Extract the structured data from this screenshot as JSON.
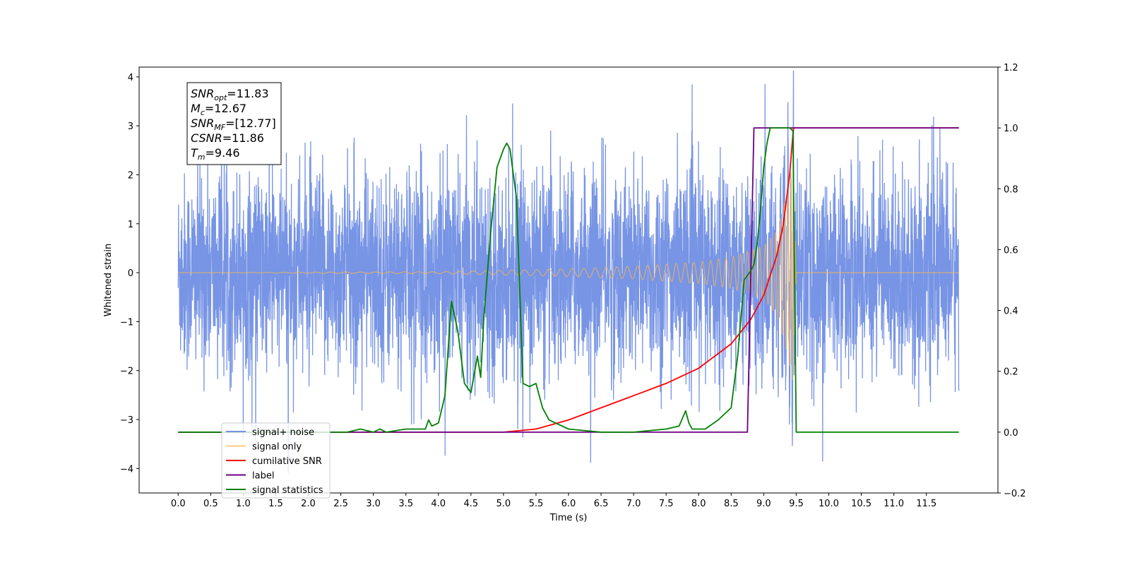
{
  "chart_data": {
    "type": "line",
    "xlabel": "Time (s)",
    "ylabel_left": "Whitened strain",
    "ylabel_right": "",
    "xlim": [
      -0.6,
      12.6
    ],
    "ylim_left": [
      -4.5,
      4.2
    ],
    "ylim_right": [
      -0.2,
      1.2
    ],
    "x_ticks": [
      "0.0",
      "0.5",
      "1.0",
      "1.5",
      "2.0",
      "2.5",
      "3.0",
      "3.5",
      "4.0",
      "4.5",
      "5.0",
      "5.5",
      "6.0",
      "6.5",
      "7.0",
      "7.5",
      "8.0",
      "8.5",
      "9.0",
      "9.5",
      "10.0",
      "10.5",
      "11.0",
      "11.5"
    ],
    "y_ticks_left": [
      "4",
      "3",
      "2",
      "1",
      "0",
      "−1",
      "−2",
      "−3",
      "−4"
    ],
    "y_ticks_right": [
      "1.2",
      "1.0",
      "0.8",
      "0.6",
      "0.4",
      "0.2",
      "0.0",
      "−0.2"
    ],
    "grid": false,
    "legend_position": "lower-left",
    "annotation_box": {
      "lines": [
        {
          "base": "SNR",
          "sub": "opt",
          "rest": "=11.83"
        },
        {
          "base": "M",
          "sub": "c",
          "rest": "=12.67"
        },
        {
          "base": "SNR",
          "sub": "MF",
          "rest": "=[12.77]"
        },
        {
          "base": "CSNR",
          "sub": "",
          "rest": "=11.86"
        },
        {
          "base": "T",
          "sub": "m",
          "rest": "=9.46"
        }
      ]
    },
    "series": [
      {
        "name": "signal+ noise",
        "color": "#6b8be3",
        "axis": "left",
        "description_values": {
          "x_range": [
            0.0,
            12.0
          ],
          "typical_amplitude": 1.5,
          "min": -4.1,
          "max": 3.8
        }
      },
      {
        "name": "signal only",
        "color": "#ffb74d",
        "axis": "left",
        "envelope": {
          "x": [
            0.0,
            4.0,
            5.0,
            6.0,
            7.0,
            8.0,
            8.5,
            9.0,
            9.2,
            9.35,
            9.45,
            9.5,
            12.0
          ],
          "amp": [
            0.0,
            0.02,
            0.05,
            0.08,
            0.13,
            0.22,
            0.32,
            0.55,
            0.85,
            1.6,
            2.3,
            0.0,
            0.0
          ]
        }
      },
      {
        "name": "cumilative SNR",
        "color": "#ff0000",
        "axis": "right",
        "x": [
          0.0,
          5.0,
          5.5,
          6.0,
          6.5,
          7.0,
          7.5,
          8.0,
          8.5,
          8.8,
          9.0,
          9.2,
          9.3,
          9.4,
          9.45,
          9.46,
          12.0
        ],
        "y": [
          0.0,
          0.0,
          0.01,
          0.04,
          0.08,
          0.12,
          0.16,
          0.21,
          0.29,
          0.37,
          0.45,
          0.58,
          0.68,
          0.85,
          0.98,
          1.0,
          1.0
        ]
      },
      {
        "name": "label",
        "color": "#6a0080",
        "axis": "right",
        "x": [
          0.0,
          8.75,
          8.85,
          12.0
        ],
        "y": [
          0.0,
          0.0,
          1.0,
          1.0
        ]
      },
      {
        "name": "signal statistics",
        "color": "#008000",
        "axis": "right",
        "x": [
          0.0,
          2.6,
          2.8,
          3.0,
          3.1,
          3.2,
          3.5,
          3.6,
          3.7,
          3.8,
          3.85,
          3.9,
          4.0,
          4.1,
          4.2,
          4.3,
          4.4,
          4.5,
          4.6,
          4.65,
          4.7,
          4.8,
          4.9,
          5.0,
          5.05,
          5.1,
          5.2,
          5.3,
          5.4,
          5.5,
          5.6,
          5.7,
          5.8,
          5.9,
          6.0,
          6.5,
          7.0,
          7.5,
          7.7,
          7.8,
          7.85,
          7.9,
          8.0,
          8.1,
          8.3,
          8.5,
          8.6,
          8.7,
          8.8,
          8.85,
          8.9,
          8.95,
          9.0,
          9.05,
          9.1,
          9.2,
          9.3,
          9.4,
          9.45,
          9.5,
          12.0
        ],
        "y": [
          0.0,
          0.0,
          0.01,
          0.0,
          0.01,
          0.0,
          0.01,
          0.01,
          0.01,
          0.01,
          0.04,
          0.02,
          0.03,
          0.12,
          0.43,
          0.33,
          0.16,
          0.13,
          0.25,
          0.18,
          0.38,
          0.65,
          0.87,
          0.93,
          0.95,
          0.93,
          0.77,
          0.16,
          0.15,
          0.16,
          0.08,
          0.04,
          0.03,
          0.02,
          0.01,
          0.0,
          0.0,
          0.01,
          0.02,
          0.07,
          0.03,
          0.01,
          0.01,
          0.01,
          0.04,
          0.08,
          0.25,
          0.5,
          0.53,
          0.55,
          0.62,
          0.73,
          0.87,
          0.95,
          1.0,
          1.0,
          1.0,
          1.0,
          0.99,
          0.0,
          0.0
        ]
      }
    ]
  }
}
